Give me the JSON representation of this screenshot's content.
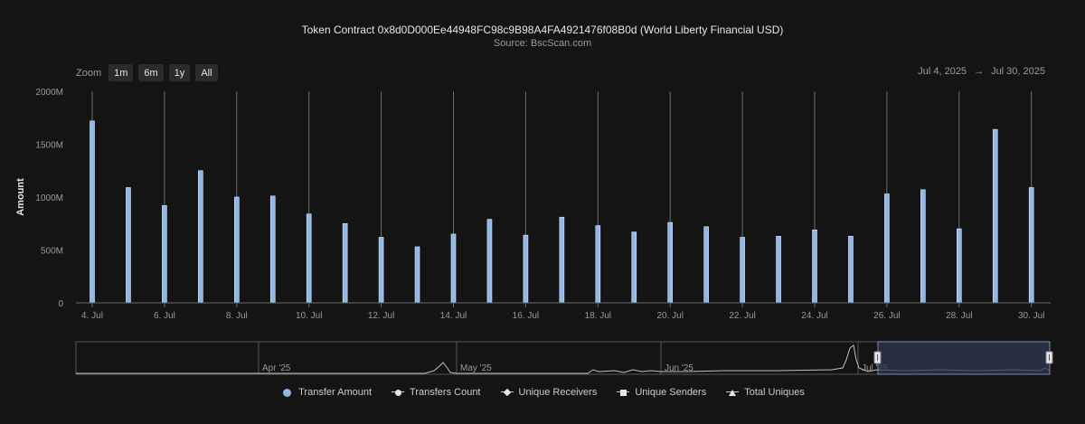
{
  "title": "Token Contract 0x8d0D000Ee44948FC98c9B98A4FA4921476f08B0d (World Liberty Financial USD)",
  "subtitle": "Source: BscScan.com",
  "zoom": {
    "label": "Zoom",
    "buttons": [
      "1m",
      "6m",
      "1y",
      "All"
    ]
  },
  "range": {
    "from": "Jul 4, 2025",
    "arrow": "→",
    "to": "Jul 30, 2025"
  },
  "navigator": {
    "labels": [
      "Apr '25",
      "May '25",
      "Jun '25",
      "Jul '25"
    ]
  },
  "legend": [
    "Transfer Amount",
    "Transfers Count",
    "Unique Receivers",
    "Unique Senders",
    "Total Uniques"
  ],
  "colors": {
    "bar": "#90b7e6",
    "background": "#141414",
    "grid": "#3a3a3a",
    "navigator_mask": "#2e3750"
  },
  "chart_data": {
    "type": "bar",
    "ylabel": "Amount",
    "ylim": [
      0,
      2000
    ],
    "yticks": [
      "0",
      "500M",
      "1000M",
      "1500M",
      "2000M"
    ],
    "xticks": [
      "4. Jul",
      "6. Jul",
      "8. Jul",
      "10. Jul",
      "12. Jul",
      "14. Jul",
      "16. Jul",
      "18. Jul",
      "20. Jul",
      "22. Jul",
      "24. Jul",
      "26. Jul",
      "28. Jul",
      "30. Jul"
    ],
    "categories": [
      "Jul 4",
      "Jul 5",
      "Jul 6",
      "Jul 7",
      "Jul 8",
      "Jul 9",
      "Jul 10",
      "Jul 11",
      "Jul 12",
      "Jul 13",
      "Jul 14",
      "Jul 15",
      "Jul 16",
      "Jul 17",
      "Jul 18",
      "Jul 19",
      "Jul 20",
      "Jul 21",
      "Jul 22",
      "Jul 23",
      "Jul 24",
      "Jul 25",
      "Jul 26",
      "Jul 27",
      "Jul 28",
      "Jul 29",
      "Jul 30"
    ],
    "series": [
      {
        "name": "Transfer Amount",
        "unit": "M",
        "values": [
          1720,
          1090,
          920,
          1250,
          1000,
          1010,
          840,
          750,
          620,
          530,
          650,
          790,
          640,
          810,
          730,
          670,
          760,
          720,
          620,
          630,
          690,
          630,
          1030,
          1070,
          700,
          1640,
          1090
        ]
      }
    ],
    "legend_position": "bottom",
    "grid": false
  }
}
